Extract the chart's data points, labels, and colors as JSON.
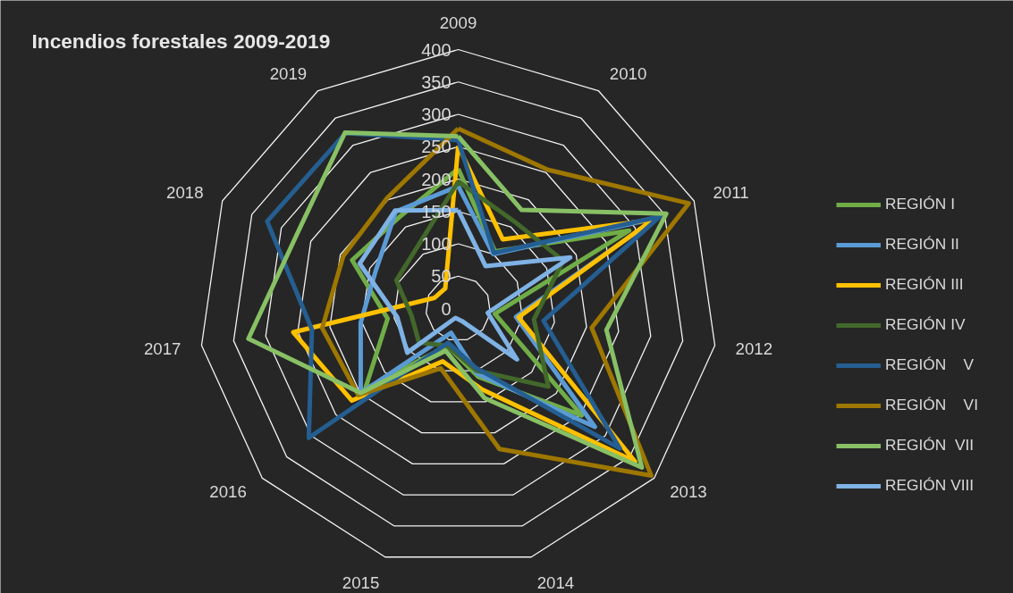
{
  "chart_data": {
    "type": "radar",
    "title": "Incendios forestales 2009-2019",
    "categories": [
      "2009",
      "2010",
      "2011",
      "2012",
      "2013",
      "2014",
      "2015",
      "2016",
      "2017",
      "2018",
      "2019"
    ],
    "ylim": [
      0,
      400
    ],
    "yticks": [
      0,
      50,
      100,
      150,
      200,
      250,
      300,
      350,
      400
    ],
    "grid": true,
    "legend": "right",
    "series": [
      {
        "name": "REGIÓN I",
        "color": "#70ad47",
        "values": [
          216,
          105,
          290,
          57,
          252,
          110,
          60,
          190,
          110,
          180,
          168
        ]
      },
      {
        "name": "REGIÓN II",
        "color": "#5b9bd5",
        "values": [
          189,
          100,
          335,
          90,
          279,
          105,
          39,
          199,
          152,
          140,
          178
        ]
      },
      {
        "name": "REGIÓN III",
        "color": "#ffc000",
        "values": [
          251,
          127,
          330,
          94,
          361,
          130,
          85,
          217,
          257,
          40,
          37
        ]
      },
      {
        "name": "REGIÓN IV",
        "color": "#43682b",
        "values": [
          196,
          160,
          178,
          118,
          184,
          100,
          60,
          80,
          73,
          105,
          115
        ]
      },
      {
        "name": "REGIÓN    V",
        "color": "#255e91",
        "values": [
          260,
          102,
          342,
          133,
          330,
          95,
          55,
          305,
          228,
          324,
          322
        ]
      },
      {
        "name": "REGIÓN    VI",
        "color": "#9e7700",
        "values": [
          278,
          255,
          391,
          208,
          394,
          226,
          96,
          204,
          212,
          195,
          203
        ]
      },
      {
        "name": "REGIÓN  VII",
        "color": "#88c065",
        "values": [
          266,
          181,
          353,
          231,
          375,
          144,
          68,
          199,
          327,
          274,
          323
        ]
      },
      {
        "name": "REGIÓN VIII",
        "color": "#7fb2e5",
        "values": [
          152,
          78,
          190,
          46,
          120,
          20,
          15,
          104,
          95,
          167,
          180
        ]
      }
    ]
  }
}
